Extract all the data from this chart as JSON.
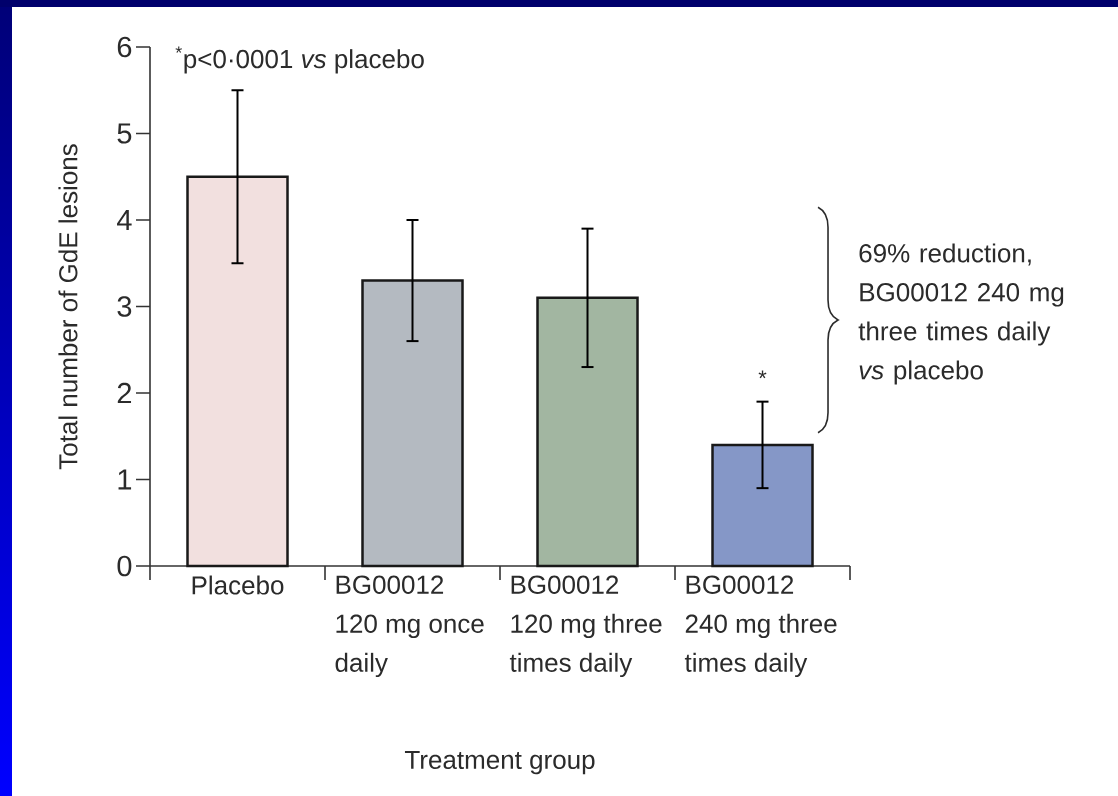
{
  "chart_data": {
    "type": "bar",
    "xlabel": "Treatment group",
    "ylabel": "Total number of GdE lesions",
    "categories": [
      "Placebo",
      "BG00012 120 mg once daily",
      "BG00012 120 mg three times daily",
      "BG00012 240 mg three times daily"
    ],
    "values": [
      4.5,
      3.3,
      3.1,
      1.4
    ],
    "colors": [
      "#f2e0df",
      "#b4bac1",
      "#a2b6a1",
      "#8597c7"
    ],
    "errors": [
      1.0,
      0.7,
      0.8,
      0.5
    ],
    "ylim": [
      0,
      6
    ],
    "yticks": [
      0,
      1,
      2,
      3,
      4,
      5,
      6
    ],
    "annotations": [
      "$^{*}$p<0·0001 *vs* placebo",
      "69% reduction, BG00012 240 mg three times daily *vs* placebo",
      "*"
    ]
  }
}
